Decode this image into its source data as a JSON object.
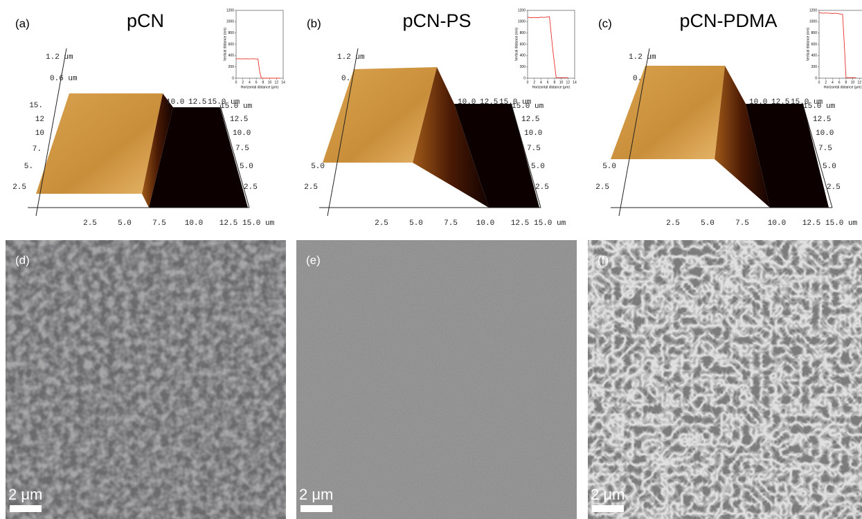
{
  "panels": [
    {
      "label": "(a)",
      "title": "pCN",
      "afm": {
        "z_labels": [
          "1.2 um",
          "0.6 um"
        ],
        "left_ticks": [
          "15.",
          "12",
          "10",
          "7.",
          "5.",
          "2.5"
        ],
        "top_ticks": [
          "10.0",
          "12.5",
          "15.0 um"
        ],
        "right_ticks": [
          "15.0 um",
          "12.5",
          "10.0",
          "7.5",
          "5.0",
          "2.5"
        ],
        "bottom_ticks": [
          "2.5",
          "5.0",
          "7.5",
          "10.0",
          "12.5",
          "15.0 um"
        ]
      },
      "inset": {
        "xlabel": "Horizontal distance (μm)",
        "ylabel": "Vertical distance (nm)",
        "xlim": [
          0,
          14
        ],
        "ylim": [
          0,
          1200
        ],
        "xticks": [
          0,
          2,
          4,
          6,
          8,
          10,
          12,
          14
        ],
        "yticks": [
          0,
          200,
          400,
          600,
          800,
          1000,
          1200
        ],
        "color": "#e8302a",
        "x": [
          0,
          1,
          2,
          3,
          4,
          5,
          6,
          6.5,
          7,
          7.5,
          8,
          10,
          12,
          13
        ],
        "y": [
          340,
          345,
          340,
          345,
          340,
          345,
          340,
          340,
          120,
          0,
          0,
          0,
          0,
          0
        ]
      }
    },
    {
      "label": "(b)",
      "title": "pCN-PS",
      "afm": {
        "z_labels": [
          "1.2 um",
          "0."
        ],
        "left_ticks": [
          "5.0",
          "2.5"
        ],
        "top_ticks": [
          "10.0",
          "12.5",
          "15.0 um"
        ],
        "right_ticks": [
          "15.0 um",
          "12.5",
          "10.0",
          "7.5",
          "5.0",
          "2.5"
        ],
        "bottom_ticks": [
          "2.5",
          "5.0",
          "7.5",
          "10.0",
          "12.5",
          "15.0 um"
        ]
      },
      "inset": {
        "xlabel": "Horizontal distance (μm)",
        "ylabel": "Vertical distance (nm)",
        "xlim": [
          0,
          14
        ],
        "ylim": [
          0,
          1200
        ],
        "xticks": [
          0,
          2,
          4,
          6,
          8,
          10,
          12,
          14
        ],
        "yticks": [
          0,
          200,
          400,
          600,
          800,
          1000,
          1200
        ],
        "color": "#e8302a",
        "x": [
          0,
          1,
          2,
          3,
          4,
          5,
          6,
          6.5,
          7.5,
          8.5,
          10,
          12
        ],
        "y": [
          1080,
          1070,
          1075,
          1070,
          1080,
          1075,
          1085,
          1090,
          500,
          10,
          10,
          10
        ]
      }
    },
    {
      "label": "(c)",
      "title": "pCN-PDMA",
      "afm": {
        "z_labels": [
          "1.2 um",
          "0."
        ],
        "left_ticks": [
          "5.0",
          "2.5"
        ],
        "top_ticks": [
          "10.0",
          "12.5",
          "15.0 um"
        ],
        "right_ticks": [
          "15.0 um",
          "12.5",
          "10.0",
          "7.5",
          "5.0",
          "2.5"
        ],
        "bottom_ticks": [
          "2.5",
          "5.0",
          "7.5",
          "10.0",
          "12.5",
          "15.0 um"
        ]
      },
      "inset": {
        "xlabel": "Horizontal distance (μm)",
        "ylabel": "Vertical distance (nm)",
        "xlim": [
          0,
          14
        ],
        "ylim": [
          0,
          1200
        ],
        "xticks": [
          0,
          2,
          4,
          6,
          8,
          10,
          12
        ],
        "yticks": [
          0,
          200,
          400,
          600,
          800,
          1000,
          1200
        ],
        "color": "#e8302a",
        "x": [
          0,
          1,
          2,
          3,
          4,
          5,
          6,
          7,
          7.5,
          8,
          9,
          10,
          11
        ],
        "y": [
          1160,
          1150,
          1155,
          1150,
          1145,
          1150,
          1140,
          1130,
          600,
          10,
          10,
          10,
          10
        ]
      }
    }
  ],
  "sem": [
    {
      "label": "(d)",
      "scale_bar": "2 μm"
    },
    {
      "label": "(e)",
      "scale_bar": "2 μm"
    },
    {
      "label": "(f)",
      "scale_bar": "2 μm"
    }
  ]
}
